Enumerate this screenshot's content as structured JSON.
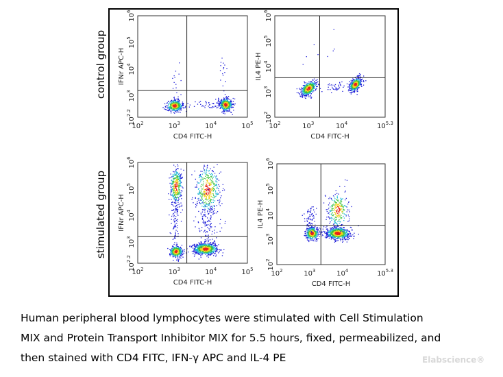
{
  "row_labels": [
    "control group",
    "stimulated group"
  ],
  "caption": [
    "Human peripheral blood lymphocytes were stimulated with Cell Stimulation",
    "MIX and Protein Transport Inhibitor MIX for 5.5 hours, fixed, permeabilized, and",
    "then stained with CD4 FITC, IFN-γ APC and IL-4 PE"
  ],
  "watermark": "Elabscience®",
  "colors": {
    "frame": "#000000",
    "density": [
      "#e8221c",
      "#f2d21c",
      "#3ec43a",
      "#1fb6d6",
      "#1c1cd8"
    ]
  },
  "chart_data": [
    {
      "type": "scatter",
      "panel": "control group IFN-γ",
      "xlabel": "CD4 FITC-H",
      "ylabel": "IFNr APC-H",
      "xscale": "log",
      "yscale": "log",
      "xlim": [
        100,
        100000
      ],
      "ylim": [
        158,
        1000000
      ],
      "xticks": [
        {
          "base": "10",
          "exp": "2",
          "value": 100
        },
        {
          "base": "10",
          "exp": "3",
          "value": 1000
        },
        {
          "base": "10",
          "exp": "4",
          "value": 10000
        },
        {
          "base": "10",
          "exp": "5",
          "value": 100000
        }
      ],
      "yticks": [
        {
          "base": "10",
          "exp": "2.2",
          "value": 158
        },
        {
          "base": "10",
          "exp": "3",
          "value": 1000
        },
        {
          "base": "10",
          "exp": "4",
          "value": 10000
        },
        {
          "base": "10",
          "exp": "5",
          "value": 100000
        },
        {
          "base": "10",
          "exp": "6",
          "value": 1000000
        }
      ],
      "gate": {
        "x": 2200,
        "y": 1600
      },
      "populations": [
        {
          "center": [
            1000,
            440
          ],
          "spread_decades": [
            0.11,
            0.11
          ],
          "count": 420
        },
        {
          "center": [
            25000,
            480
          ],
          "spread_decades": [
            0.09,
            0.12
          ],
          "count": 480
        },
        {
          "center": [
            7000,
            500
          ],
          "spread_decades": [
            0.25,
            0.1
          ],
          "count": 40
        },
        {
          "center": [
            22000,
            5000
          ],
          "spread_decades": [
            0.06,
            0.6
          ],
          "count": 18
        },
        {
          "center": [
            1000,
            3000
          ],
          "spread_decades": [
            0.1,
            0.4
          ],
          "count": 14
        }
      ]
    },
    {
      "type": "scatter",
      "panel": "control group IL-4",
      "xlabel": "CD4 FITC-H",
      "ylabel": "IL4 PE-H",
      "xscale": "log",
      "yscale": "log",
      "xlim": [
        100,
        199526
      ],
      "ylim": [
        100,
        1000000
      ],
      "xticks": [
        {
          "base": "10",
          "exp": "2",
          "value": 100
        },
        {
          "base": "10",
          "exp": "3",
          "value": 1000
        },
        {
          "base": "10",
          "exp": "4",
          "value": 10000
        },
        {
          "base": "10",
          "exp": "5.3",
          "value": 199526
        }
      ],
      "yticks": [
        {
          "base": "10",
          "exp": "2",
          "value": 100
        },
        {
          "base": "10",
          "exp": "3",
          "value": 1000
        },
        {
          "base": "10",
          "exp": "4",
          "value": 10000
        },
        {
          "base": "10",
          "exp": "5",
          "value": 100000
        },
        {
          "base": "10",
          "exp": "6",
          "value": 1000000
        }
      ],
      "gate": {
        "x": 2200,
        "y": 3600
      },
      "populations": [
        {
          "center": [
            1000,
            1400
          ],
          "spread_decades": [
            0.12,
            0.13
          ],
          "count": 450
        },
        {
          "center": [
            25000,
            2000
          ],
          "spread_decades": [
            0.09,
            0.12
          ],
          "count": 450
        },
        {
          "center": [
            6000,
            1600
          ],
          "spread_decades": [
            0.25,
            0.1
          ],
          "count": 45
        },
        {
          "center": [
            3000,
            20000
          ],
          "spread_decades": [
            0.4,
            0.5
          ],
          "count": 8
        }
      ]
    },
    {
      "type": "scatter",
      "panel": "stimulated group IFN-γ",
      "xlabel": "CD4 FITC-H",
      "ylabel": "IFNr APC-H",
      "xscale": "log",
      "yscale": "log",
      "xlim": [
        100,
        100000
      ],
      "ylim": [
        158,
        1000000
      ],
      "xticks": [
        {
          "base": "10",
          "exp": "2",
          "value": 100
        },
        {
          "base": "10",
          "exp": "3",
          "value": 1000
        },
        {
          "base": "10",
          "exp": "4",
          "value": 10000
        },
        {
          "base": "10",
          "exp": "5",
          "value": 100000
        }
      ],
      "yticks": [
        {
          "base": "10",
          "exp": "2.2",
          "value": 158
        },
        {
          "base": "10",
          "exp": "3",
          "value": 1000
        },
        {
          "base": "10",
          "exp": "4",
          "value": 10000
        },
        {
          "base": "10",
          "exp": "5",
          "value": 100000
        },
        {
          "base": "10",
          "exp": "6",
          "value": 1000000
        }
      ],
      "gate": {
        "x": 2200,
        "y": 1600
      },
      "populations": [
        {
          "center": [
            1100,
            450
          ],
          "spread_decades": [
            0.09,
            0.11
          ],
          "count": 330
        },
        {
          "center": [
            7000,
            560
          ],
          "spread_decades": [
            0.17,
            0.11
          ],
          "count": 650
        },
        {
          "center": [
            1100,
            130000
          ],
          "spread_decades": [
            0.08,
            0.35
          ],
          "count": 320
        },
        {
          "center": [
            8000,
            100000
          ],
          "spread_decades": [
            0.17,
            0.45
          ],
          "count": 400
        },
        {
          "center": [
            1100,
            8000
          ],
          "spread_decades": [
            0.08,
            0.45
          ],
          "count": 90
        },
        {
          "center": [
            8000,
            5000
          ],
          "spread_decades": [
            0.17,
            0.4
          ],
          "count": 120
        }
      ]
    },
    {
      "type": "scatter",
      "panel": "stimulated group IL-4",
      "xlabel": "CD4 FITC-H",
      "ylabel": "IL4 PE-H",
      "xscale": "log",
      "yscale": "log",
      "xlim": [
        100,
        199526
      ],
      "ylim": [
        100,
        1000000
      ],
      "xticks": [
        {
          "base": "10",
          "exp": "2",
          "value": 100
        },
        {
          "base": "10",
          "exp": "3",
          "value": 1000
        },
        {
          "base": "10",
          "exp": "4",
          "value": 10000
        },
        {
          "base": "10",
          "exp": "5.3",
          "value": 199526
        }
      ],
      "yticks": [
        {
          "base": "10",
          "exp": "2",
          "value": 100
        },
        {
          "base": "10",
          "exp": "3",
          "value": 1000
        },
        {
          "base": "10",
          "exp": "4",
          "value": 10000
        },
        {
          "base": "10",
          "exp": "5",
          "value": 100000
        },
        {
          "base": "10",
          "exp": "6",
          "value": 1000000
        }
      ],
      "gate": {
        "x": 2200,
        "y": 3600
      },
      "populations": [
        {
          "center": [
            1150,
            1800
          ],
          "spread_decades": [
            0.1,
            0.13
          ],
          "count": 380
        },
        {
          "center": [
            7000,
            1800
          ],
          "spread_decades": [
            0.18,
            0.12
          ],
          "count": 700
        },
        {
          "center": [
            7000,
            15000
          ],
          "spread_decades": [
            0.16,
            0.35
          ],
          "count": 260
        },
        {
          "center": [
            1000,
            7000
          ],
          "spread_decades": [
            0.09,
            0.3
          ],
          "count": 70
        }
      ]
    }
  ]
}
